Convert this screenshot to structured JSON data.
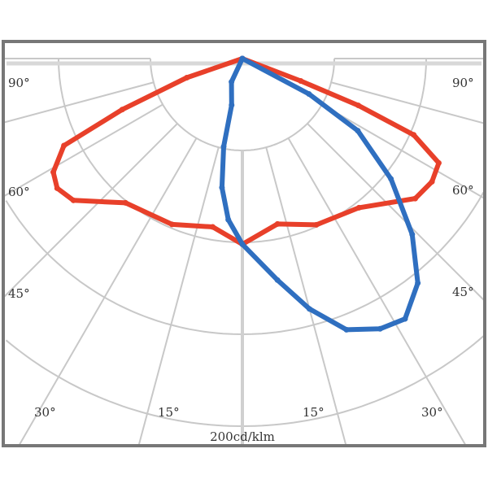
{
  "chart_data": {
    "type": "line",
    "polar": true,
    "angle_unit": "deg",
    "angle_labels_left": [
      "90°",
      "60°",
      "45°"
    ],
    "angle_labels_right": [
      "90°",
      "60°",
      "45°"
    ],
    "angle_labels_bottom": [
      "30°",
      "15°",
      "15°",
      "30°"
    ],
    "scale_label": "200cd/klm",
    "rmax": 200,
    "ring_step": 50,
    "grid": true,
    "series": [
      {
        "color": "#e8402a",
        "points": [
          [
            90,
            0
          ],
          [
            -71,
            32
          ],
          [
            -67,
            71
          ],
          [
            -64,
            108
          ],
          [
            -59,
            120
          ],
          [
            -55,
            123
          ],
          [
            -50,
            120
          ],
          [
            -39,
            101
          ],
          [
            -23,
            98
          ],
          [
            -10,
            93
          ],
          [
            0,
            101
          ],
          [
            12,
            92
          ],
          [
            24,
            99
          ],
          [
            38,
            103
          ],
          [
            51,
            121
          ],
          [
            57,
            123
          ],
          [
            62,
            121
          ],
          [
            66,
            102
          ],
          [
            68,
            68
          ],
          [
            69,
            34
          ],
          [
            90,
            0
          ]
        ]
      },
      {
        "color": "#2f6fc0",
        "points": [
          [
            0,
            0
          ],
          [
            -25,
            14
          ],
          [
            -13,
            26
          ],
          [
            -12,
            49
          ],
          [
            -9,
            71
          ],
          [
            -5,
            88
          ],
          [
            0,
            101
          ],
          [
            9,
            122
          ],
          [
            15,
            141
          ],
          [
            21,
            158
          ],
          [
            27,
            165
          ],
          [
            32,
            167
          ],
          [
            38,
            155
          ],
          [
            44,
            133
          ],
          [
            51,
            104
          ],
          [
            58,
            74
          ],
          [
            62,
            41
          ],
          [
            0,
            0
          ]
        ]
      }
    ]
  }
}
